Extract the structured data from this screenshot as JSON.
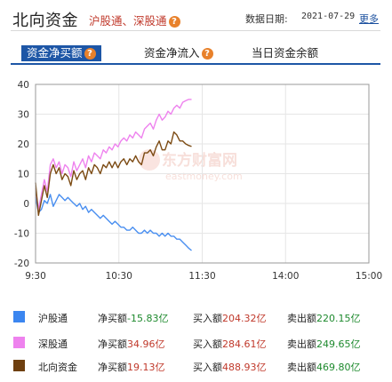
{
  "header": {
    "title": "北向资金",
    "subtitle": "沪股通、深股通",
    "date_label": "数据日期:",
    "date_value": "2021-07-29",
    "more_link": "更多"
  },
  "tabs": [
    {
      "label": "资金净买额",
      "active": true
    },
    {
      "label": "资金净流入",
      "active": false
    },
    {
      "label": "当日资金余额",
      "active": false
    }
  ],
  "chart_data": {
    "type": "line",
    "watermark_logo": "东方财富网 eastmoney.com",
    "x_ticks": [
      "9:30",
      "10:30",
      "11:30",
      "14:00",
      "15:00"
    ],
    "y_ticks": [
      "40",
      "30",
      "20",
      "10",
      "0",
      "-10",
      "-20"
    ],
    "ylim": [
      -20,
      40
    ],
    "grid": true,
    "series": [
      {
        "name": "沪股通",
        "color": "#4a8ff0",
        "values": [
          2,
          -3,
          -2,
          1,
          0,
          3,
          -1,
          1,
          3,
          2,
          1,
          2,
          1,
          0,
          -1,
          0,
          -2,
          -1,
          -3,
          -2,
          -3,
          -4,
          -5,
          -4,
          -5,
          -6,
          -7,
          -6,
          -7,
          -8,
          -8,
          -9,
          -9,
          -8,
          -9,
          -10,
          -10,
          -9,
          -10,
          -9,
          -10,
          -10,
          -11,
          -10,
          -11,
          -10,
          -11,
          -11,
          -12,
          -12,
          -13,
          -14,
          -15,
          -15.83
        ]
      },
      {
        "name": "深股通",
        "color": "#ee82ee",
        "values": [
          5,
          -2,
          3,
          8,
          4,
          13,
          15,
          12,
          14,
          10,
          13,
          12,
          9,
          14,
          11,
          13,
          15,
          12,
          16,
          14,
          17,
          16,
          15,
          18,
          17,
          19,
          18,
          20,
          19,
          21,
          22,
          21,
          23,
          22,
          24,
          23,
          22,
          25,
          26,
          27,
          25,
          28,
          30,
          28,
          29,
          31,
          30,
          32,
          33,
          32,
          34,
          34.5,
          34.96,
          34.96
        ]
      },
      {
        "name": "北向资金",
        "color": "#7b4a12",
        "values": [
          7,
          -4,
          1,
          6,
          2,
          10,
          13,
          10,
          12,
          8,
          10,
          9,
          6,
          11,
          8,
          10,
          11,
          8,
          12,
          10,
          13,
          12,
          10,
          13,
          12,
          14,
          12,
          14,
          12,
          14,
          15,
          13,
          15,
          14,
          16,
          14,
          13,
          17,
          17,
          18,
          16,
          19,
          21,
          18,
          18,
          21,
          20,
          24,
          23,
          21,
          21,
          20,
          19.5,
          19.13
        ]
      }
    ]
  },
  "legend": [
    {
      "name": "沪股通",
      "net_label": "净买额",
      "net_value": "-15.83亿",
      "net_color": "green",
      "buy_label": "买入额",
      "buy_value": "204.32亿",
      "sell_label": "卖出额",
      "sell_value": "220.15亿"
    },
    {
      "name": "深股通",
      "net_label": "净买额",
      "net_value": "34.96亿",
      "net_color": "red",
      "buy_label": "买入额",
      "buy_value": "284.61亿",
      "sell_label": "卖出额",
      "sell_value": "249.65亿"
    },
    {
      "name": "北向资金",
      "net_label": "净买额",
      "net_value": "19.13亿",
      "net_color": "red",
      "buy_label": "买入额",
      "buy_value": "488.93亿",
      "sell_label": "卖出额",
      "sell_value": "469.80亿"
    }
  ]
}
